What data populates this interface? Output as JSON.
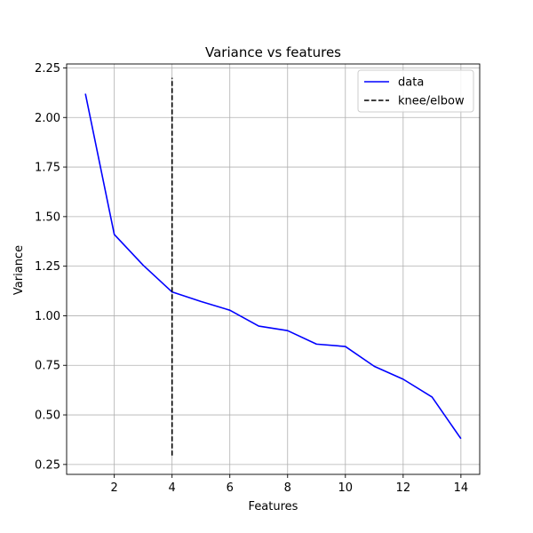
{
  "chart_data": {
    "type": "line",
    "title": "Variance vs features",
    "xlabel": "Features",
    "ylabel": "Variance",
    "xlim": [
      0.35,
      14.65
    ],
    "ylim": [
      0.2,
      2.27
    ],
    "xticks": [
      2,
      4,
      6,
      8,
      10,
      12,
      14
    ],
    "xtick_labels": [
      "2",
      "4",
      "6",
      "8",
      "10",
      "12",
      "14"
    ],
    "yticks": [
      0.25,
      0.5,
      0.75,
      1.0,
      1.25,
      1.5,
      1.75,
      2.0,
      2.25
    ],
    "ytick_labels": [
      "0.25",
      "0.50",
      "0.75",
      "1.00",
      "1.25",
      "1.50",
      "1.75",
      "2.00",
      "2.25"
    ],
    "grid": true,
    "legend_position": "top-right",
    "series": [
      {
        "name": "data",
        "style": "solid",
        "color": "#0000ff",
        "x": [
          1,
          2,
          3,
          4,
          5,
          6,
          7,
          8,
          9,
          10,
          11,
          12,
          13,
          14
        ],
        "y": [
          2.12,
          1.41,
          1.255,
          1.12,
          1.072,
          1.028,
          0.948,
          0.925,
          0.857,
          0.845,
          0.745,
          0.68,
          0.59,
          0.38
        ]
      },
      {
        "name": "knee/elbow",
        "style": "dashed",
        "color": "#000000",
        "x": [
          4,
          4
        ],
        "y": [
          0.295,
          2.2
        ]
      }
    ]
  }
}
